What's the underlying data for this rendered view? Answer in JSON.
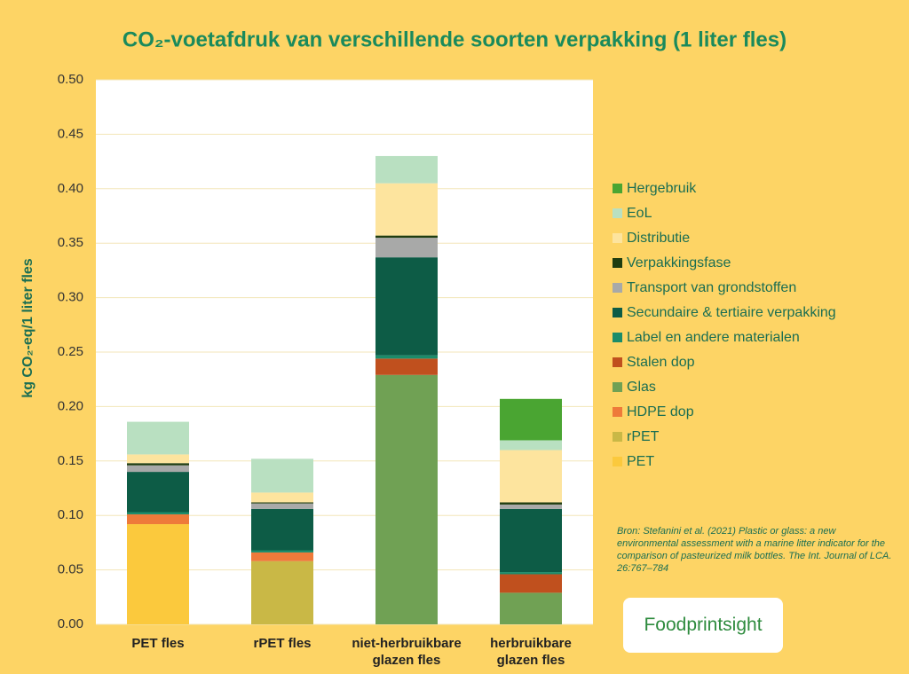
{
  "chart_data": {
    "type": "stacked-bar",
    "title": "CO₂-voetafdruk van verschillende soorten verpakking (1 liter fles)",
    "y_label": "kg CO₂-eq/1 liter fles",
    "categories": [
      "PET fles",
      "rPET fles",
      "niet-herbruikbare glazen fles",
      "herbruikbare glazen fles"
    ],
    "series": [
      {
        "name": "PET",
        "color": "#fbc93d",
        "values": [
          0.092,
          null,
          null,
          null
        ]
      },
      {
        "name": "rPET",
        "color": "#c9b846",
        "values": [
          null,
          0.058,
          null,
          null
        ]
      },
      {
        "name": "HDPE dop",
        "color": "#ee7a3a",
        "values": [
          0.009,
          0.008,
          null,
          null
        ]
      },
      {
        "name": "Glas",
        "color": "#70a154",
        "values": [
          null,
          null,
          0.229,
          0.029
        ]
      },
      {
        "name": "Stalen dop",
        "color": "#c0501e",
        "values": [
          null,
          null,
          0.015,
          0.017
        ]
      },
      {
        "name": "Label en andere materialen",
        "color": "#1b8c6a",
        "values": [
          0.002,
          0.002,
          0.003,
          0.002
        ]
      },
      {
        "name": "Secundaire & tertiaire verpakking",
        "color": "#0d5c46",
        "values": [
          0.037,
          0.038,
          0.09,
          0.058
        ]
      },
      {
        "name": "Transport van grondstoffen",
        "color": "#a8a9a8",
        "values": [
          0.006,
          0.005,
          0.018,
          0.004
        ]
      },
      {
        "name": "Verpakkingsfase",
        "color": "#1f3d10",
        "values": [
          0.002,
          0.001,
          0.002,
          0.002
        ]
      },
      {
        "name": "Distributie",
        "color": "#fde49e",
        "values": [
          0.008,
          0.009,
          0.048,
          0.048
        ]
      },
      {
        "name": "EoL",
        "color": "#b9e0c1",
        "values": [
          0.03,
          0.031,
          0.025,
          0.009
        ]
      },
      {
        "name": "Hergebruik",
        "color": "#4aa532",
        "values": [
          null,
          null,
          null,
          0.038
        ]
      }
    ],
    "ylim": [
      0,
      0.5
    ],
    "yticks": [
      {
        "value": 0,
        "label": "0.00"
      },
      {
        "value": 0.05,
        "label": "0.05"
      },
      {
        "value": 0.1,
        "label": "0.10"
      },
      {
        "value": 0.15,
        "label": "0.15"
      },
      {
        "value": 0.2,
        "label": "0.20"
      },
      {
        "value": 0.25,
        "label": "0.25"
      },
      {
        "value": 0.3,
        "label": "0.30"
      },
      {
        "value": 0.35,
        "label": "0.35"
      },
      {
        "value": 0.4,
        "label": "0.40"
      },
      {
        "value": 0.45,
        "label": "0.45"
      },
      {
        "value": 0.5,
        "label": "0.50"
      }
    ],
    "grid": true,
    "source": "Bron: Stefanini et al. (2021) Plastic or glass: a new environmental assessment with a marine litter indicator for the comparison of pasteurized milk bottles. The Int. Journal of LCA. 26:767–784",
    "logo": "Foodprintsight"
  }
}
